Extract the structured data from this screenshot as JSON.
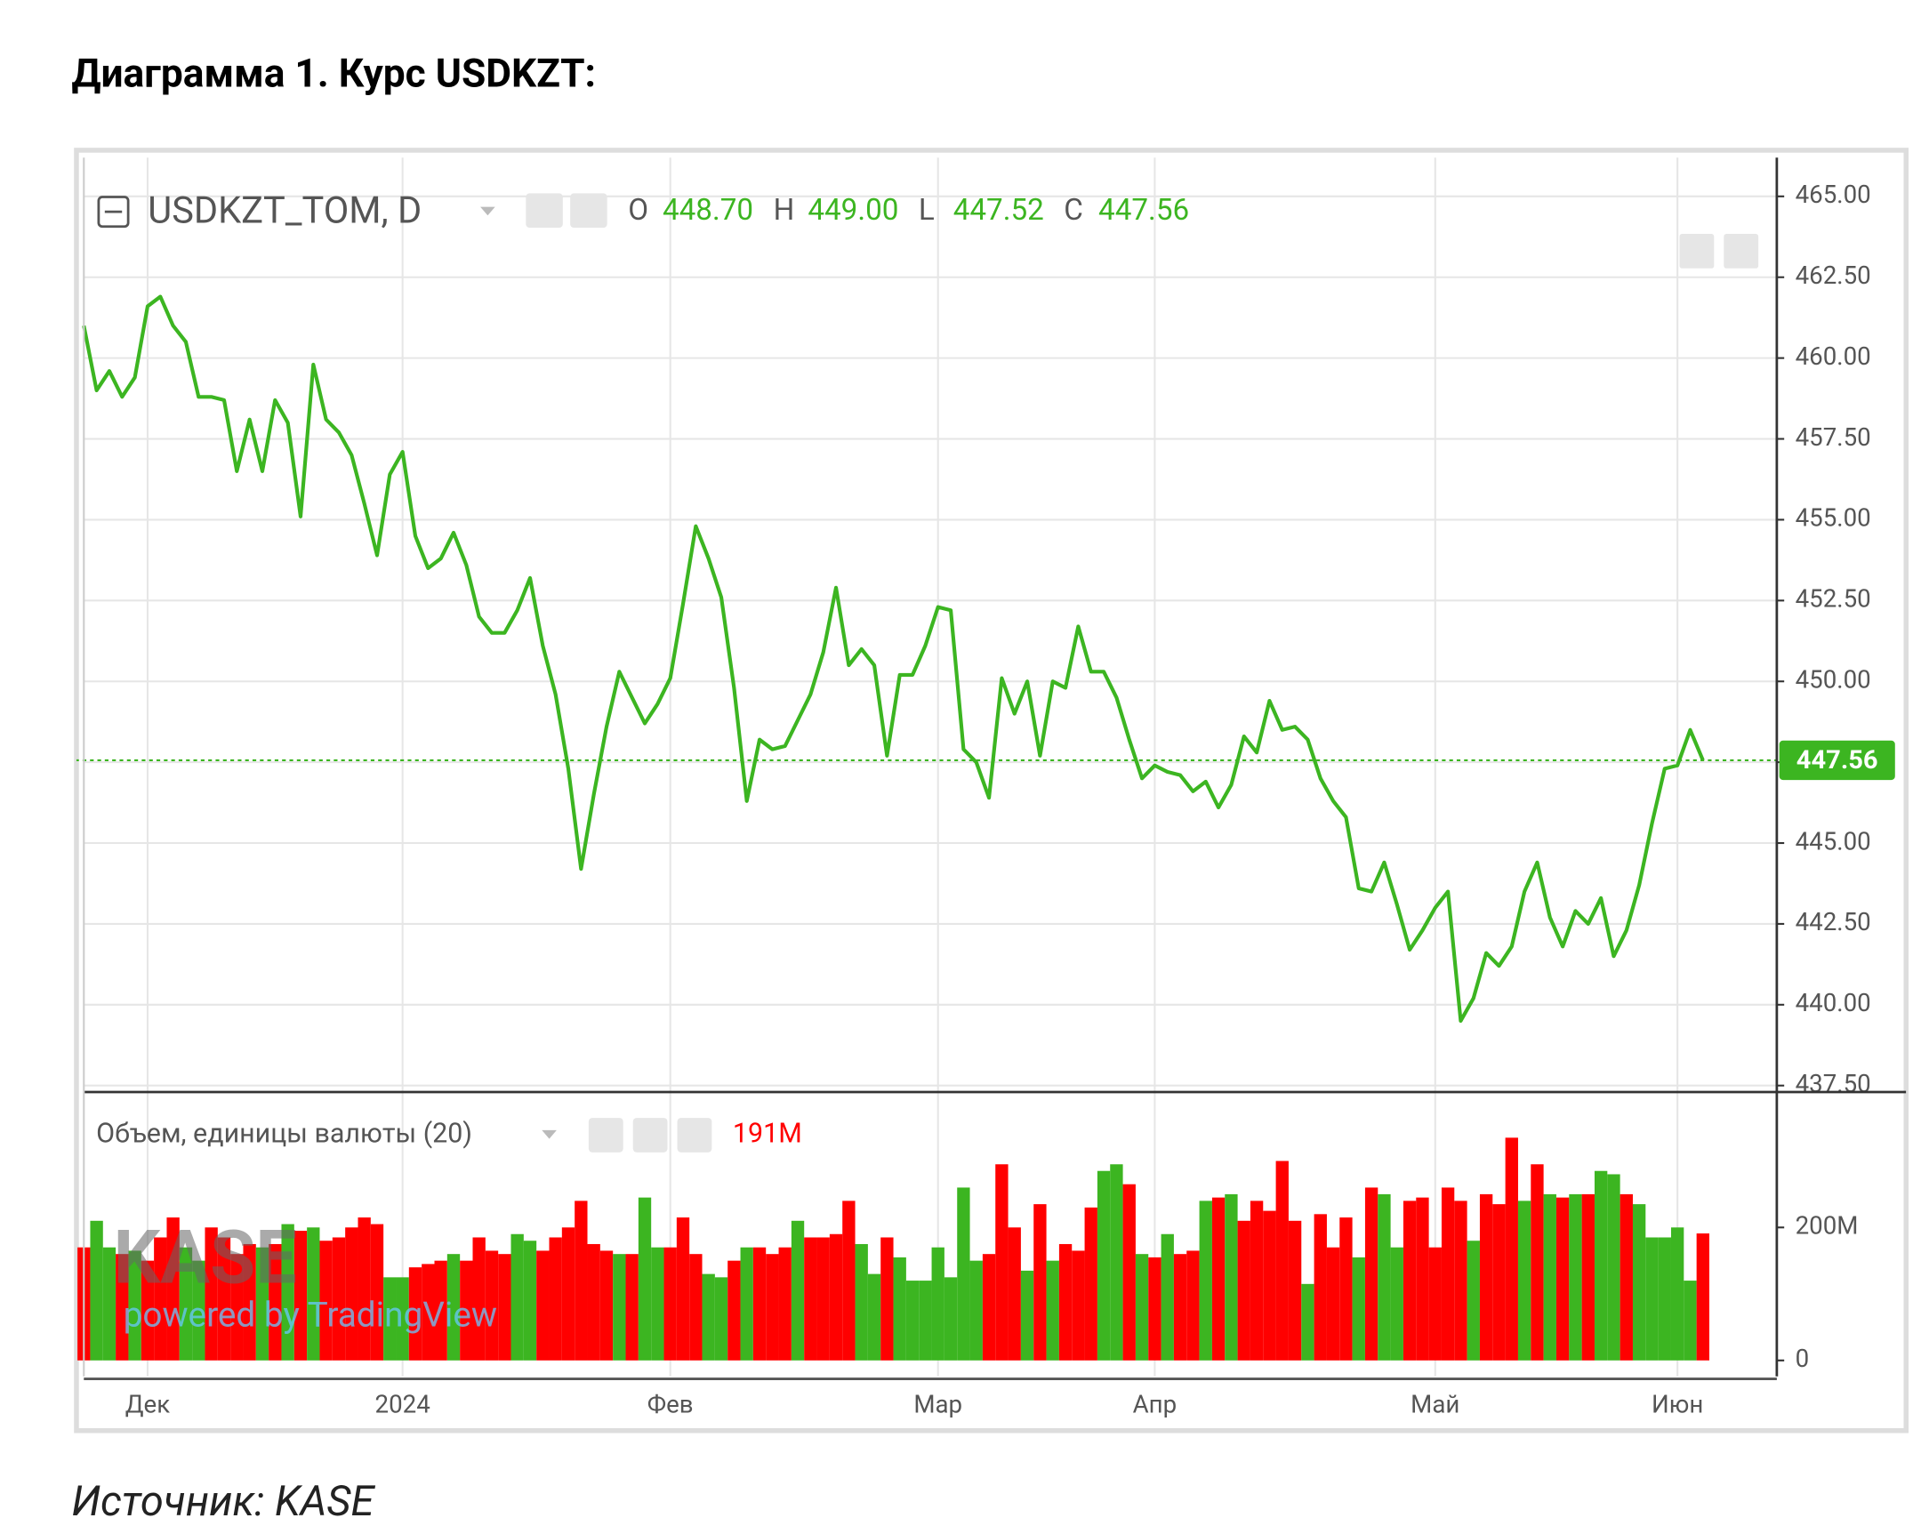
{
  "header": {
    "title": "Диаграмма 1. Курс USDKZT:"
  },
  "footer": {
    "source": "Источник: KASE"
  },
  "chart_data": [
    {
      "type": "line",
      "symbol": "USDKZT_TOM, D",
      "color": "#3cb521",
      "grid": true,
      "ohlc": [
        {
          "name": "O",
          "value": 448.7,
          "label": "448.70"
        },
        {
          "name": "H",
          "value": 449,
          "label": "449.00"
        },
        {
          "name": "L",
          "value": 447.52,
          "label": "447.52"
        },
        {
          "name": "C",
          "value": 447.56,
          "label": "447.56"
        }
      ],
      "last_value": 447.56,
      "categories": [
        null,
        null,
        null,
        null,
        null,
        "Дек",
        null,
        null,
        null,
        null,
        null,
        null,
        null,
        null,
        null,
        null,
        null,
        null,
        null,
        null,
        null,
        null,
        null,
        null,
        null,
        "2024",
        null,
        null,
        null,
        null,
        null,
        null,
        null,
        null,
        null,
        null,
        null,
        null,
        null,
        null,
        null,
        null,
        null,
        null,
        null,
        null,
        "Фев",
        null,
        null,
        null,
        null,
        null,
        null,
        null,
        null,
        null,
        null,
        null,
        null,
        null,
        null,
        null,
        null,
        null,
        null,
        null,
        null,
        "Мар",
        null,
        null,
        null,
        null,
        null,
        null,
        null,
        null,
        null,
        null,
        null,
        null,
        null,
        null,
        null,
        null,
        "Апр",
        null,
        null,
        null,
        null,
        null,
        null,
        null,
        null,
        null,
        null,
        null,
        null,
        null,
        null,
        null,
        null,
        null,
        null,
        null,
        null,
        null,
        "Май",
        null,
        null,
        null,
        null,
        null,
        null,
        null,
        null,
        null,
        null,
        null,
        null,
        null,
        null,
        null,
        null,
        null,
        null,
        "Июн",
        null,
        null
      ],
      "values": [
        461.0,
        459.0,
        459.6,
        458.8,
        459.4,
        461.6,
        461.9,
        461.0,
        460.5,
        458.8,
        458.8,
        458.7,
        456.5,
        458.1,
        456.5,
        458.7,
        458.0,
        455.1,
        459.8,
        458.1,
        457.7,
        457.0,
        455.5,
        453.9,
        456.4,
        457.1,
        454.5,
        453.5,
        453.8,
        454.6,
        453.6,
        452.0,
        451.5,
        451.5,
        452.2,
        453.2,
        451.1,
        449.6,
        447.3,
        444.2,
        446.5,
        448.6,
        450.3,
        449.5,
        448.7,
        449.3,
        450.1,
        452.4,
        454.8,
        453.8,
        452.6,
        449.8,
        446.3,
        448.2,
        447.9,
        448.0,
        448.8,
        449.6,
        450.9,
        452.9,
        450.5,
        451.0,
        450.5,
        447.7,
        450.2,
        450.2,
        451.1,
        452.3,
        452.2,
        447.9,
        447.5,
        446.4,
        450.1,
        449.0,
        450.0,
        447.7,
        450.0,
        449.8,
        451.7,
        450.3,
        450.3,
        449.5,
        448.2,
        447.0,
        447.4,
        447.2,
        447.1,
        446.6,
        446.9,
        446.1,
        446.8,
        448.3,
        447.8,
        449.4,
        448.5,
        448.6,
        448.2,
        447.0,
        446.3,
        445.8,
        443.6,
        443.5,
        444.4,
        443.1,
        441.7,
        442.3,
        443.0,
        443.5,
        439.5,
        440.2,
        441.6,
        441.2,
        441.8,
        443.5,
        444.4,
        442.7,
        441.8,
        442.9,
        442.5,
        443.3,
        441.5,
        442.3,
        443.7,
        445.6,
        447.3,
        447.4,
        448.5,
        447.56
      ],
      "ylim": [
        437.3,
        466.2
      ],
      "yticks": [
        {
          "value": 437.5,
          "label": "437.50"
        },
        {
          "value": 440,
          "label": "440.00"
        },
        {
          "value": 442.5,
          "label": "442.50"
        },
        {
          "value": 445,
          "label": "445.00"
        },
        {
          "value": 447.5,
          "label": "447.50"
        },
        {
          "value": 450,
          "label": "450.00"
        },
        {
          "value": 452.5,
          "label": "452.50"
        },
        {
          "value": 455,
          "label": "455.00"
        },
        {
          "value": 457.5,
          "label": "457.50"
        },
        {
          "value": 460,
          "label": "460.00"
        },
        {
          "value": 462.5,
          "label": "462.50"
        },
        {
          "value": 465,
          "label": "465.00"
        }
      ]
    },
    {
      "type": "bar",
      "title": "Объем, единицы валюты (20)",
      "watermark": "KASE",
      "credit": "powered by TradingView",
      "last_value": {
        "value": 191000000,
        "label": "191M"
      },
      "last_color": "#ff0000",
      "values": [
        170000000,
        210000000,
        170000000,
        160000000,
        165000000,
        150000000,
        185000000,
        215000000,
        170000000,
        150000000,
        200000000,
        185000000,
        160000000,
        175000000,
        170000000,
        175000000,
        205000000,
        195000000,
        200000000,
        180000000,
        185000000,
        200000000,
        215000000,
        205000000,
        125000000,
        125000000,
        140000000,
        145000000,
        150000000,
        160000000,
        150000000,
        185000000,
        165000000,
        160000000,
        190000000,
        180000000,
        165000000,
        185000000,
        200000000,
        240000000,
        175000000,
        165000000,
        160000000,
        160000000,
        245000000,
        170000000,
        170000000,
        215000000,
        160000000,
        130000000,
        125000000,
        150000000,
        170000000,
        170000000,
        160000000,
        170000000,
        210000000,
        185000000,
        185000000,
        190000000,
        240000000,
        175000000,
        130000000,
        185000000,
        155000000,
        120000000,
        120000000,
        170000000,
        125000000,
        260000000,
        150000000,
        160000000,
        295000000,
        200000000,
        135000000,
        235000000,
        150000000,
        175000000,
        165000000,
        230000000,
        285000000,
        295000000,
        265000000,
        160000000,
        155000000,
        190000000,
        160000000,
        165000000,
        240000000,
        245000000,
        250000000,
        210000000,
        240000000,
        225000000,
        300000000,
        210000000,
        115000000,
        220000000,
        170000000,
        215000000,
        155000000,
        260000000,
        250000000,
        170000000,
        240000000,
        245000000,
        170000000,
        260000000,
        240000000,
        180000000,
        250000000,
        235000000,
        335000000,
        240000000,
        295000000,
        250000000,
        245000000,
        250000000,
        250000000,
        285000000,
        280000000,
        250000000,
        235000000,
        185000000,
        185000000,
        200000000,
        120000000,
        191000000
      ],
      "colors": [
        "#ff0000",
        "#3cb521",
        "#3cb521",
        "#ff0000",
        "#3cb521",
        "#ff0000",
        "#ff0000",
        "#ff0000",
        "#3cb521",
        "#3cb521",
        "#ff0000",
        "#ff0000",
        "#ff0000",
        "#ff0000",
        "#3cb521",
        "#ff0000",
        "#3cb521",
        "#ff0000",
        "#3cb521",
        "#ff0000",
        "#ff0000",
        "#ff0000",
        "#ff0000",
        "#ff0000",
        "#3cb521",
        "#3cb521",
        "#ff0000",
        "#ff0000",
        "#ff0000",
        "#3cb521",
        "#ff0000",
        "#ff0000",
        "#ff0000",
        "#ff0000",
        "#3cb521",
        "#3cb521",
        "#ff0000",
        "#ff0000",
        "#ff0000",
        "#ff0000",
        "#ff0000",
        "#ff0000",
        "#3cb521",
        "#ff0000",
        "#3cb521",
        "#3cb521",
        "#ff0000",
        "#ff0000",
        "#ff0000",
        "#3cb521",
        "#3cb521",
        "#ff0000",
        "#3cb521",
        "#ff0000",
        "#ff0000",
        "#ff0000",
        "#3cb521",
        "#ff0000",
        "#ff0000",
        "#ff0000",
        "#ff0000",
        "#3cb521",
        "#3cb521",
        "#ff0000",
        "#3cb521",
        "#3cb521",
        "#3cb521",
        "#3cb521",
        "#3cb521",
        "#3cb521",
        "#3cb521",
        "#ff0000",
        "#ff0000",
        "#ff0000",
        "#3cb521",
        "#ff0000",
        "#3cb521",
        "#ff0000",
        "#ff0000",
        "#ff0000",
        "#3cb521",
        "#3cb521",
        "#ff0000",
        "#3cb521",
        "#ff0000",
        "#3cb521",
        "#ff0000",
        "#ff0000",
        "#3cb521",
        "#ff0000",
        "#3cb521",
        "#ff0000",
        "#ff0000",
        "#ff0000",
        "#ff0000",
        "#ff0000",
        "#3cb521",
        "#ff0000",
        "#ff0000",
        "#ff0000",
        "#3cb521",
        "#ff0000",
        "#3cb521",
        "#3cb521",
        "#ff0000",
        "#ff0000",
        "#ff0000",
        "#ff0000",
        "#ff0000",
        "#3cb521",
        "#ff0000",
        "#ff0000",
        "#ff0000",
        "#3cb521",
        "#ff0000",
        "#3cb521",
        "#ff0000",
        "#3cb521",
        "#ff0000",
        "#3cb521",
        "#3cb521",
        "#ff0000",
        "#3cb521",
        "#3cb521",
        "#3cb521",
        "#3cb521",
        "#3cb521",
        "#ff0000"
      ],
      "ylim": [
        0,
        400000000
      ],
      "yticks": [
        0,
        {
          "value": 200000000,
          "label": "200M"
        }
      ]
    }
  ]
}
